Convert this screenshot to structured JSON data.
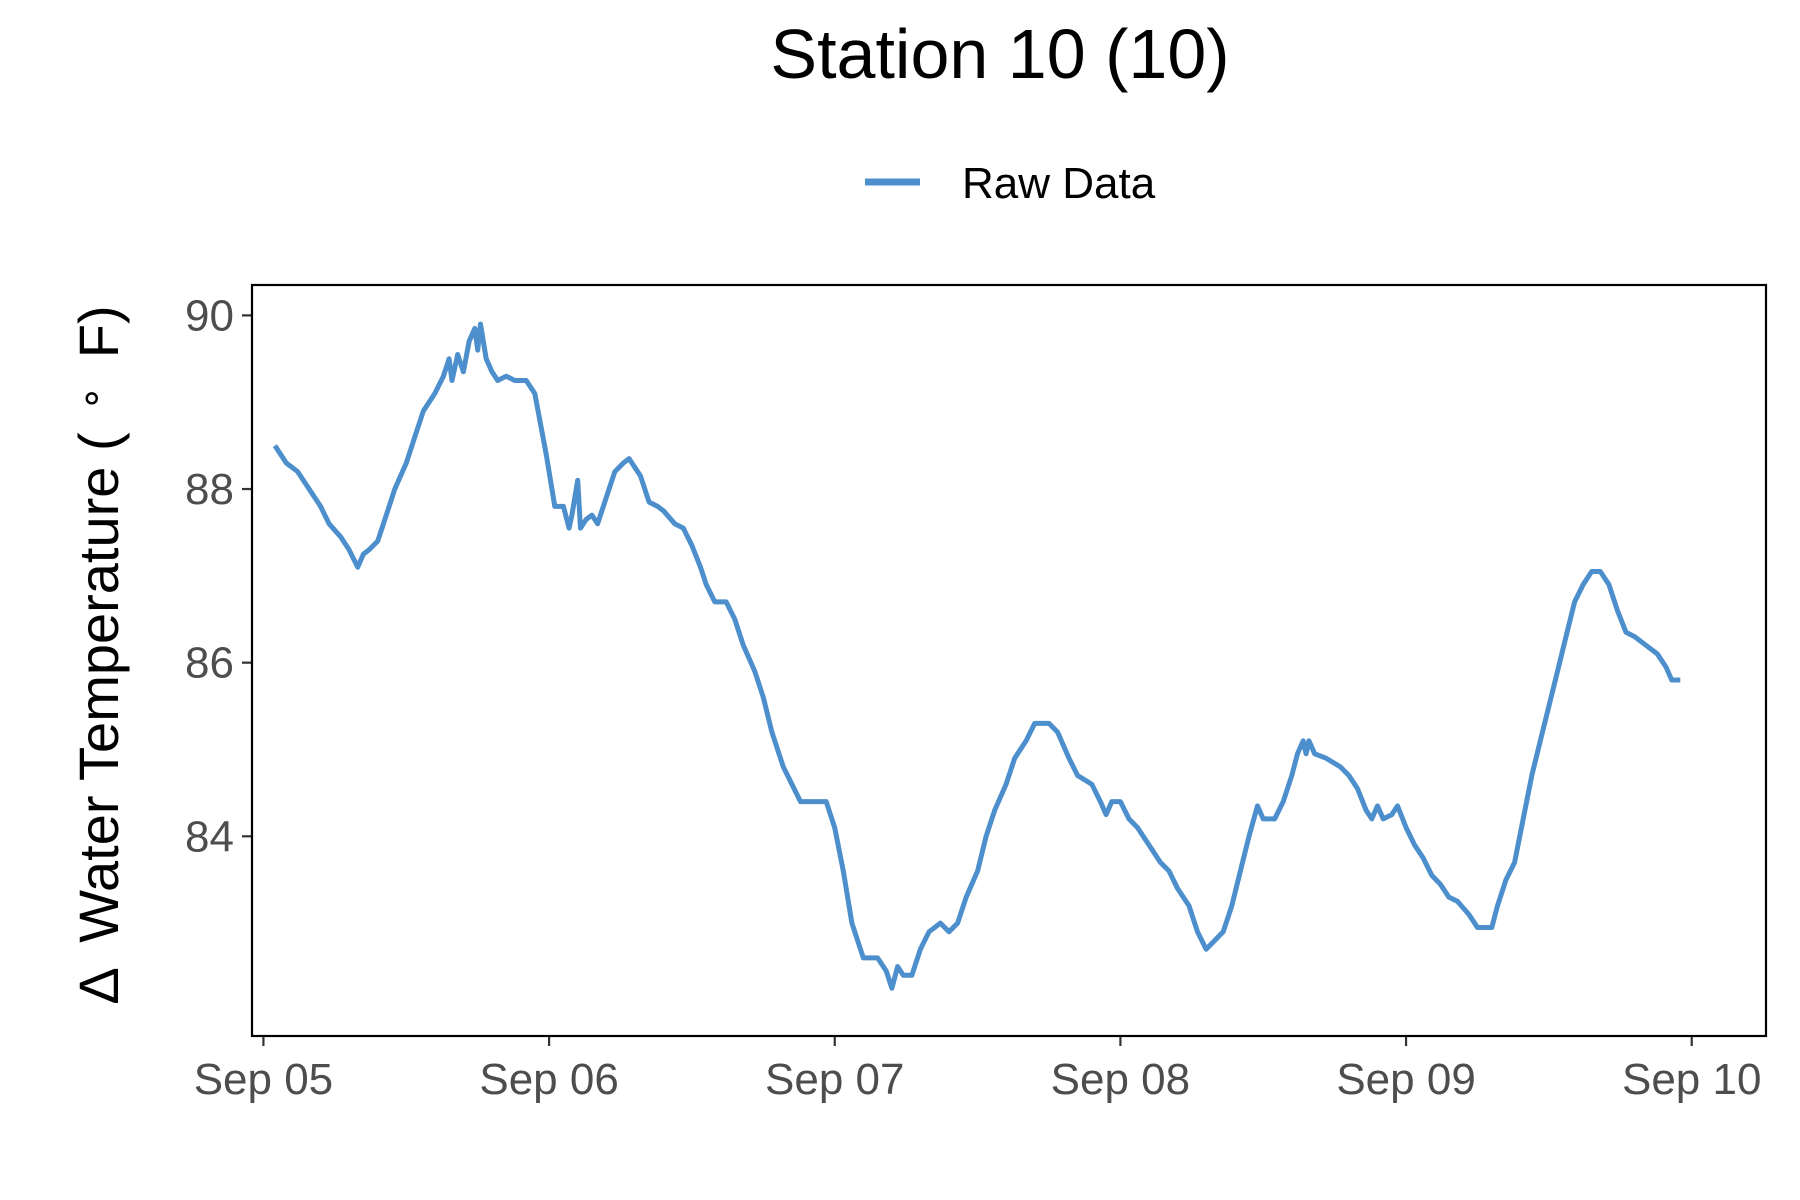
{
  "chart_data": {
    "type": "line",
    "title": "Station 10 (10)",
    "xlabel": "",
    "ylabel": "Δ Water Temperature (∘F)",
    "ylabel_parts": {
      "delta": "Δ",
      "main": "Water Temperature (",
      "degree": "∘",
      "unit": "F)"
    },
    "x_axis": {
      "unit": "day of September",
      "range": [
        4.96,
        10.26
      ],
      "ticks": [
        {
          "value": 5,
          "label": "Sep 05"
        },
        {
          "value": 6,
          "label": "Sep 06"
        },
        {
          "value": 7,
          "label": "Sep 07"
        },
        {
          "value": 8,
          "label": "Sep 08"
        },
        {
          "value": 9,
          "label": "Sep 09"
        },
        {
          "value": 10,
          "label": "Sep 10"
        }
      ]
    },
    "y_axis": {
      "range": [
        81.7,
        90.35
      ],
      "ticks": [
        {
          "value": 84,
          "label": "84"
        },
        {
          "value": 86,
          "label": "86"
        },
        {
          "value": 88,
          "label": "88"
        },
        {
          "value": 90,
          "label": "90"
        }
      ]
    },
    "legend": {
      "position": "top",
      "entries": [
        {
          "label": "Raw Data",
          "color": "#4d8fcc"
        }
      ]
    },
    "grid": false,
    "series": [
      {
        "name": "Raw Data",
        "color": "#4d8fcc",
        "points": [
          [
            5.04,
            88.5
          ],
          [
            5.08,
            88.3
          ],
          [
            5.12,
            88.2
          ],
          [
            5.17,
            87.95
          ],
          [
            5.2,
            87.8
          ],
          [
            5.23,
            87.6
          ],
          [
            5.27,
            87.45
          ],
          [
            5.3,
            87.3
          ],
          [
            5.33,
            87.1
          ],
          [
            5.35,
            87.25
          ],
          [
            5.37,
            87.3
          ],
          [
            5.4,
            87.4
          ],
          [
            5.43,
            87.7
          ],
          [
            5.46,
            88.0
          ],
          [
            5.5,
            88.3
          ],
          [
            5.53,
            88.6
          ],
          [
            5.56,
            88.9
          ],
          [
            5.6,
            89.1
          ],
          [
            5.63,
            89.3
          ],
          [
            5.65,
            89.5
          ],
          [
            5.66,
            89.25
          ],
          [
            5.68,
            89.55
          ],
          [
            5.7,
            89.35
          ],
          [
            5.72,
            89.7
          ],
          [
            5.74,
            89.85
          ],
          [
            5.75,
            89.6
          ],
          [
            5.76,
            89.9
          ],
          [
            5.78,
            89.5
          ],
          [
            5.8,
            89.35
          ],
          [
            5.82,
            89.25
          ],
          [
            5.85,
            89.3
          ],
          [
            5.88,
            89.25
          ],
          [
            5.92,
            89.25
          ],
          [
            5.95,
            89.1
          ],
          [
            5.99,
            88.4
          ],
          [
            6.02,
            87.8
          ],
          [
            6.05,
            87.8
          ],
          [
            6.07,
            87.55
          ],
          [
            6.08,
            87.7
          ],
          [
            6.1,
            88.1
          ],
          [
            6.11,
            87.55
          ],
          [
            6.13,
            87.65
          ],
          [
            6.15,
            87.7
          ],
          [
            6.17,
            87.6
          ],
          [
            6.2,
            87.9
          ],
          [
            6.23,
            88.2
          ],
          [
            6.26,
            88.3
          ],
          [
            6.28,
            88.35
          ],
          [
            6.32,
            88.15
          ],
          [
            6.35,
            87.85
          ],
          [
            6.38,
            87.8
          ],
          [
            6.4,
            87.75
          ],
          [
            6.44,
            87.6
          ],
          [
            6.47,
            87.55
          ],
          [
            6.5,
            87.35
          ],
          [
            6.53,
            87.1
          ],
          [
            6.55,
            86.9
          ],
          [
            6.58,
            86.7
          ],
          [
            6.62,
            86.7
          ],
          [
            6.65,
            86.5
          ],
          [
            6.68,
            86.2
          ],
          [
            6.72,
            85.9
          ],
          [
            6.75,
            85.6
          ],
          [
            6.78,
            85.2
          ],
          [
            6.82,
            84.8
          ],
          [
            6.85,
            84.6
          ],
          [
            6.88,
            84.4
          ],
          [
            6.92,
            84.4
          ],
          [
            6.97,
            84.4
          ],
          [
            7.0,
            84.1
          ],
          [
            7.03,
            83.6
          ],
          [
            7.06,
            83.0
          ],
          [
            7.1,
            82.6
          ],
          [
            7.15,
            82.6
          ],
          [
            7.18,
            82.45
          ],
          [
            7.2,
            82.25
          ],
          [
            7.22,
            82.5
          ],
          [
            7.24,
            82.4
          ],
          [
            7.27,
            82.4
          ],
          [
            7.3,
            82.7
          ],
          [
            7.33,
            82.9
          ],
          [
            7.37,
            83.0
          ],
          [
            7.4,
            82.9
          ],
          [
            7.43,
            83.0
          ],
          [
            7.46,
            83.3
          ],
          [
            7.5,
            83.6
          ],
          [
            7.53,
            84.0
          ],
          [
            7.56,
            84.3
          ],
          [
            7.6,
            84.6
          ],
          [
            7.63,
            84.9
          ],
          [
            7.67,
            85.1
          ],
          [
            7.7,
            85.3
          ],
          [
            7.75,
            85.3
          ],
          [
            7.78,
            85.2
          ],
          [
            7.82,
            84.9
          ],
          [
            7.85,
            84.7
          ],
          [
            7.9,
            84.6
          ],
          [
            7.93,
            84.4
          ],
          [
            7.95,
            84.25
          ],
          [
            7.97,
            84.4
          ],
          [
            8.0,
            84.4
          ],
          [
            8.03,
            84.2
          ],
          [
            8.06,
            84.1
          ],
          [
            8.1,
            83.9
          ],
          [
            8.14,
            83.7
          ],
          [
            8.17,
            83.6
          ],
          [
            8.2,
            83.4
          ],
          [
            8.24,
            83.2
          ],
          [
            8.27,
            82.9
          ],
          [
            8.3,
            82.7
          ],
          [
            8.33,
            82.8
          ],
          [
            8.36,
            82.9
          ],
          [
            8.39,
            83.2
          ],
          [
            8.42,
            83.6
          ],
          [
            8.45,
            84.0
          ],
          [
            8.48,
            84.35
          ],
          [
            8.5,
            84.2
          ],
          [
            8.54,
            84.2
          ],
          [
            8.57,
            84.4
          ],
          [
            8.6,
            84.7
          ],
          [
            8.62,
            84.95
          ],
          [
            8.64,
            85.1
          ],
          [
            8.65,
            84.95
          ],
          [
            8.66,
            85.1
          ],
          [
            8.68,
            84.95
          ],
          [
            8.72,
            84.9
          ],
          [
            8.77,
            84.8
          ],
          [
            8.8,
            84.7
          ],
          [
            8.83,
            84.55
          ],
          [
            8.86,
            84.3
          ],
          [
            8.88,
            84.2
          ],
          [
            8.9,
            84.35
          ],
          [
            8.92,
            84.2
          ],
          [
            8.95,
            84.25
          ],
          [
            8.97,
            84.35
          ],
          [
            9.0,
            84.1
          ],
          [
            9.03,
            83.9
          ],
          [
            9.06,
            83.75
          ],
          [
            9.09,
            83.55
          ],
          [
            9.12,
            83.45
          ],
          [
            9.15,
            83.3
          ],
          [
            9.18,
            83.25
          ],
          [
            9.22,
            83.1
          ],
          [
            9.25,
            82.95
          ],
          [
            9.3,
            82.95
          ],
          [
            9.32,
            83.2
          ],
          [
            9.35,
            83.5
          ],
          [
            9.38,
            83.7
          ],
          [
            9.41,
            84.2
          ],
          [
            9.44,
            84.7
          ],
          [
            9.47,
            85.1
          ],
          [
            9.5,
            85.5
          ],
          [
            9.53,
            85.9
          ],
          [
            9.56,
            86.3
          ],
          [
            9.59,
            86.7
          ],
          [
            9.62,
            86.9
          ],
          [
            9.65,
            87.05
          ],
          [
            9.68,
            87.05
          ],
          [
            9.71,
            86.9
          ],
          [
            9.74,
            86.6
          ],
          [
            9.77,
            86.35
          ],
          [
            9.8,
            86.3
          ],
          [
            9.84,
            86.2
          ],
          [
            9.88,
            86.1
          ],
          [
            9.91,
            85.95
          ],
          [
            9.93,
            85.8
          ],
          [
            9.96,
            85.8
          ]
        ]
      }
    ]
  }
}
